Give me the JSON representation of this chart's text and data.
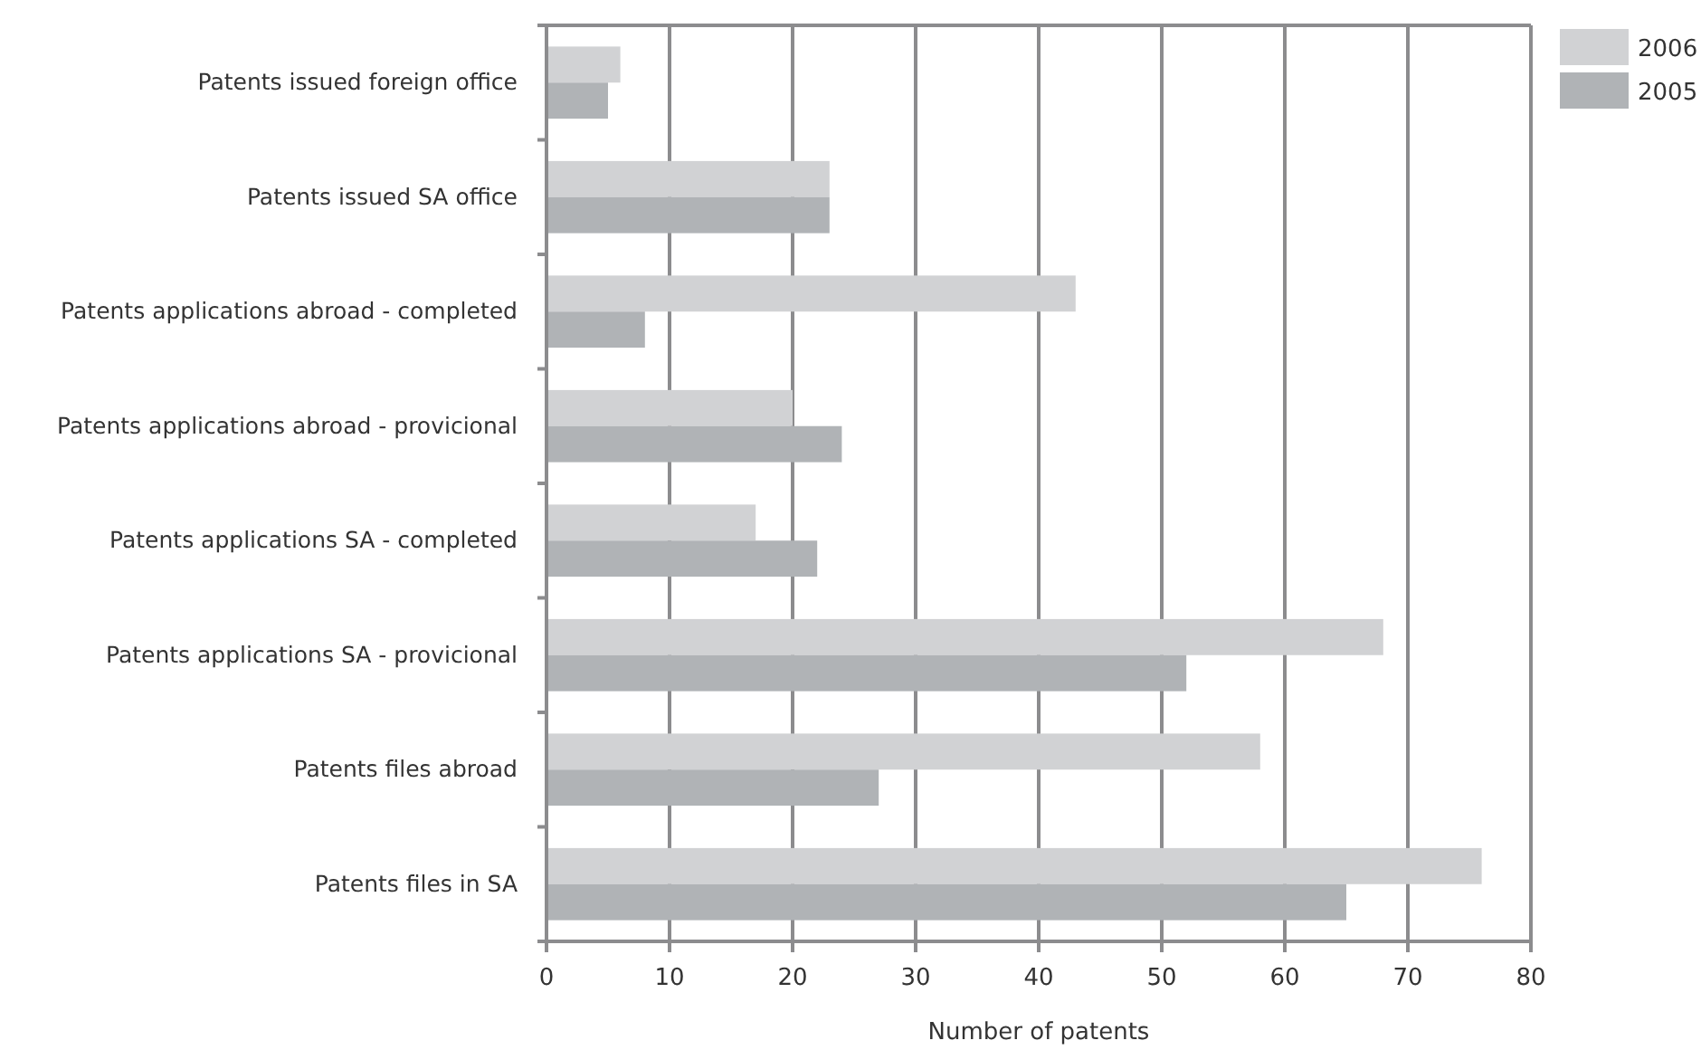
{
  "chart_data": {
    "type": "bar",
    "orientation": "horizontal",
    "xlabel": "Number of patents",
    "categories": [
      "Patents issued foreign office",
      "Patents issued SA office",
      "Patents applications abroad - completed",
      "Patents applications abroad - provicional",
      "Patents applications SA - completed",
      "Patents applications SA - provicional",
      "Patents files abroad",
      "Patents files in SA"
    ],
    "series": [
      {
        "name": "2006",
        "color": "#d1d2d4",
        "values": [
          6,
          23,
          43,
          20,
          17,
          68,
          58,
          76
        ]
      },
      {
        "name": "2005",
        "color": "#b0b3b6",
        "values": [
          5,
          23,
          8,
          24,
          22,
          52,
          27,
          65
        ]
      }
    ],
    "xlim": [
      0,
      80
    ],
    "xticks": [
      0,
      10,
      20,
      30,
      40,
      50,
      60,
      70,
      80
    ],
    "grid": "x",
    "legend": "top right"
  }
}
